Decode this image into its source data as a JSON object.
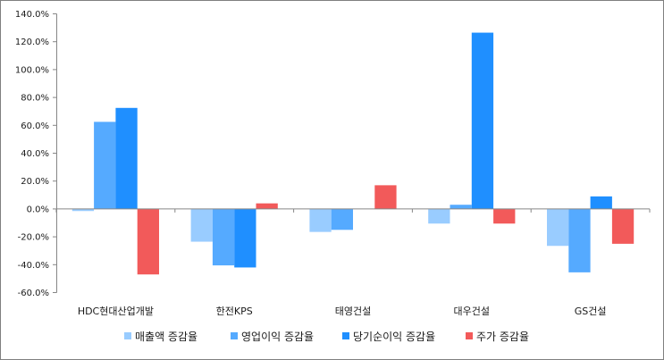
{
  "chart_data": {
    "type": "bar",
    "categories": [
      "HDC현대산업개발",
      "한전KPS",
      "태영건설",
      "대우건설",
      "GS건설"
    ],
    "series": [
      {
        "name": "매출액 증감율",
        "color": "#99ccff",
        "values": [
          -1.5,
          -23.5,
          -16.5,
          -10.5,
          -26.5
        ]
      },
      {
        "name": "영업이익 증감율",
        "color": "#55aaff",
        "values": [
          62.5,
          -40.5,
          -15.0,
          3.0,
          -45.5
        ]
      },
      {
        "name": "당기순이익 증감율",
        "color": "#1f8fff",
        "values": [
          72.5,
          -42.0,
          0,
          126.5,
          9.0
        ]
      },
      {
        "name": "주가 증감율",
        "color": "#f25a5a",
        "values": [
          -47.0,
          4.0,
          17.0,
          -10.5,
          -25.0
        ]
      }
    ],
    "ylim": [
      -60,
      140
    ],
    "ytick_step": 20,
    "ytick_labels": [
      "-60.0%",
      "-40.0%",
      "-20.0%",
      "0.0%",
      "20.0%",
      "40.0%",
      "60.0%",
      "80.0%",
      "100.0%",
      "120.0%",
      "140.0%"
    ],
    "grid": false,
    "legend_position": "bottom"
  }
}
